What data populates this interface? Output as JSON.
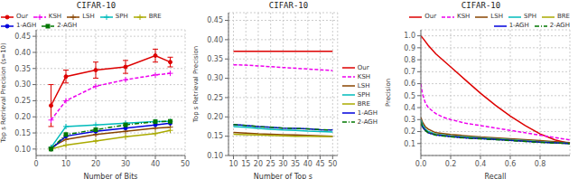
{
  "chart_data": [
    {
      "type": "line",
      "title": "CIFAR-10",
      "xlabel": "Number of Bits",
      "ylabel": "Top s Retrieval Precision (s=10)",
      "xlim": [
        0,
        50
      ],
      "ylim": [
        0.08,
        0.47
      ],
      "xticks": [
        0,
        10,
        20,
        30,
        40,
        50
      ],
      "yticks": [
        {
          "value": 0.1,
          "label": "0.10"
        },
        0.15,
        {
          "value": 0.2,
          "label": "0.20"
        },
        0.25,
        {
          "value": 0.3,
          "label": "0.30"
        },
        0.35,
        {
          "value": 0.4,
          "label": "0.40"
        },
        0.45
      ],
      "grid": true,
      "legend": "upper left",
      "x": [
        5,
        10,
        20,
        30,
        40,
        45
      ],
      "series": [
        {
          "name": "Our",
          "color": "#dd0000",
          "marker": "circle",
          "line_style": "solid",
          "values": [
            0.235,
            0.325,
            0.345,
            0.355,
            0.39,
            0.37
          ],
          "errors": [
            0.065,
            0.02,
            0.025,
            0.02,
            0.02,
            0.015
          ]
        },
        {
          "name": "KSH",
          "color": "#ee00ee",
          "marker": "plus",
          "line_style": "dashed",
          "values": [
            0.19,
            0.25,
            0.295,
            0.315,
            0.33,
            0.335
          ]
        },
        {
          "name": "LSH",
          "color": "#884400",
          "marker": "plus",
          "line_style": "solid",
          "values": [
            0.105,
            0.13,
            0.145,
            0.155,
            0.165,
            0.168
          ]
        },
        {
          "name": "SPH",
          "color": "#00bbbb",
          "marker": "plus",
          "line_style": "solid",
          "values": [
            0.105,
            0.17,
            0.175,
            0.18,
            0.185,
            0.186
          ]
        },
        {
          "name": "BRE",
          "color": "#aaaa00",
          "marker": "plus",
          "line_style": "solid",
          "values": [
            0.1,
            0.112,
            0.125,
            0.138,
            0.148,
            0.158
          ]
        },
        {
          "name": "1-AGH",
          "color": "#0000dd",
          "marker": "circle",
          "line_style": "solid",
          "values": [
            0.1,
            0.14,
            0.155,
            0.165,
            0.175,
            0.18
          ]
        },
        {
          "name": "2-AGH",
          "color": "#007700",
          "marker": "square",
          "line_style": "dashdot",
          "values": [
            0.1,
            0.145,
            0.16,
            0.175,
            0.185,
            0.186
          ]
        }
      ]
    },
    {
      "type": "line",
      "title": "CIFAR-10",
      "xlabel": "Number of Top s",
      "ylabel": "Top s Retrieval Precision",
      "xlim": [
        8,
        52
      ],
      "ylim": [
        0.1,
        0.47
      ],
      "xticks": [
        10,
        15,
        20,
        25,
        30,
        35,
        40,
        45,
        50
      ],
      "yticks": [
        {
          "value": 0.1,
          "label": "0.10"
        },
        0.15,
        {
          "value": 0.2,
          "label": "0.20"
        },
        0.25,
        {
          "value": 0.3,
          "label": "0.30"
        },
        0.35,
        {
          "value": 0.4,
          "label": "0.40"
        },
        0.45
      ],
      "grid": true,
      "legend": "center right",
      "x": [
        10,
        15,
        20,
        25,
        30,
        35,
        40,
        45,
        50
      ],
      "series": [
        {
          "name": "Our",
          "color": "#dd0000",
          "line_style": "solid",
          "values": [
            0.37,
            0.37,
            0.37,
            0.37,
            0.37,
            0.37,
            0.37,
            0.37,
            0.37
          ]
        },
        {
          "name": "KSH",
          "color": "#ee00ee",
          "line_style": "dashed",
          "values": [
            0.335,
            0.334,
            0.332,
            0.33,
            0.328,
            0.326,
            0.324,
            0.322,
            0.32
          ]
        },
        {
          "name": "LSH",
          "color": "#884400",
          "line_style": "solid",
          "values": [
            0.16,
            0.158,
            0.156,
            0.155,
            0.154,
            0.153,
            0.152,
            0.151,
            0.15
          ]
        },
        {
          "name": "SPH",
          "color": "#00bbbb",
          "line_style": "solid",
          "values": [
            0.175,
            0.173,
            0.17,
            0.168,
            0.166,
            0.165,
            0.163,
            0.162,
            0.161
          ]
        },
        {
          "name": "BRE",
          "color": "#aaaa00",
          "line_style": "solid",
          "values": [
            0.155,
            0.154,
            0.153,
            0.152,
            0.151,
            0.15,
            0.15,
            0.149,
            0.149
          ]
        },
        {
          "name": "1-AGH",
          "color": "#0000dd",
          "line_style": "solid",
          "values": [
            0.18,
            0.178,
            0.175,
            0.173,
            0.171,
            0.17,
            0.169,
            0.167,
            0.166
          ]
        },
        {
          "name": "2-AGH",
          "color": "#007700",
          "line_style": "dashdot",
          "values": [
            0.18,
            0.178,
            0.175,
            0.173,
            0.171,
            0.17,
            0.169,
            0.167,
            0.166
          ]
        }
      ]
    },
    {
      "type": "line",
      "title": "CIFAR-10",
      "xlabel": "Recall",
      "ylabel": "Precision",
      "xlim": [
        0,
        1.0
      ],
      "ylim": [
        0.0,
        1.05
      ],
      "xticks": [
        {
          "value": 0,
          "label": "0.0"
        },
        0.2,
        0.4,
        0.6,
        0.8
      ],
      "yticks": [
        0.1,
        0.2,
        0.3,
        0.4,
        0.5,
        0.6,
        0.7,
        0.8,
        0.9,
        {
          "value": 1,
          "label": "1.0"
        }
      ],
      "grid": true,
      "legend": "upper right",
      "series": [
        {
          "name": "Our",
          "color": "#dd0000",
          "line_style": "solid",
          "x": [
            0.0,
            0.02,
            0.05,
            0.1,
            0.2,
            0.3,
            0.4,
            0.5,
            0.6,
            0.7,
            0.8,
            0.9,
            1.0
          ],
          "values": [
            1.0,
            0.97,
            0.92,
            0.85,
            0.74,
            0.63,
            0.52,
            0.42,
            0.33,
            0.25,
            0.18,
            0.13,
            0.1
          ]
        },
        {
          "name": "KSH",
          "color": "#ee00ee",
          "line_style": "dashed",
          "x": [
            0.0,
            0.01,
            0.03,
            0.05,
            0.1,
            0.15,
            0.2,
            0.3,
            0.4,
            0.5,
            0.6,
            0.7,
            0.8,
            0.9,
            1.0
          ],
          "values": [
            0.6,
            0.52,
            0.44,
            0.4,
            0.35,
            0.32,
            0.3,
            0.27,
            0.25,
            0.23,
            0.21,
            0.19,
            0.17,
            0.15,
            0.13
          ]
        },
        {
          "name": "LSH",
          "color": "#884400",
          "line_style": "solid",
          "x": [
            0.0,
            0.01,
            0.03,
            0.05,
            0.1,
            0.2,
            0.3,
            0.4,
            0.5,
            0.6,
            0.7,
            0.8,
            0.9,
            1.0
          ],
          "values": [
            0.32,
            0.28,
            0.24,
            0.22,
            0.19,
            0.175,
            0.165,
            0.155,
            0.148,
            0.14,
            0.132,
            0.124,
            0.116,
            0.108
          ]
        },
        {
          "name": "SPH",
          "color": "#00bbbb",
          "line_style": "solid",
          "x": [
            0.0,
            0.01,
            0.03,
            0.05,
            0.1,
            0.2,
            0.3,
            0.4,
            0.5,
            0.6,
            0.7,
            0.8,
            0.9,
            1.0
          ],
          "values": [
            0.3,
            0.26,
            0.22,
            0.2,
            0.18,
            0.165,
            0.155,
            0.147,
            0.14,
            0.132,
            0.124,
            0.116,
            0.108,
            0.1
          ]
        },
        {
          "name": "BRE",
          "color": "#aaaa00",
          "line_style": "solid",
          "x": [
            0.0,
            0.01,
            0.03,
            0.05,
            0.1,
            0.2,
            0.3,
            0.4,
            0.5,
            0.6,
            0.7,
            0.8,
            0.9,
            1.0
          ],
          "values": [
            0.28,
            0.24,
            0.21,
            0.19,
            0.175,
            0.16,
            0.15,
            0.143,
            0.136,
            0.129,
            0.121,
            0.113,
            0.106,
            0.1
          ]
        },
        {
          "name": "1-AGH",
          "color": "#0000dd",
          "line_style": "solid",
          "x": [
            0.0,
            0.01,
            0.03,
            0.05,
            0.1,
            0.2,
            0.3,
            0.4,
            0.5,
            0.6,
            0.7,
            0.8,
            0.9,
            1.0
          ],
          "values": [
            0.28,
            0.24,
            0.21,
            0.19,
            0.172,
            0.158,
            0.148,
            0.141,
            0.134,
            0.127,
            0.119,
            0.111,
            0.105,
            0.1
          ]
        },
        {
          "name": "2-AGH",
          "color": "#007700",
          "line_style": "dashdot",
          "x": [
            0.0,
            0.01,
            0.03,
            0.05,
            0.1,
            0.2,
            0.3,
            0.4,
            0.5,
            0.6,
            0.7,
            0.8,
            0.9,
            1.0
          ],
          "values": [
            0.28,
            0.24,
            0.21,
            0.19,
            0.17,
            0.156,
            0.146,
            0.139,
            0.132,
            0.125,
            0.117,
            0.11,
            0.104,
            0.1
          ]
        }
      ]
    }
  ]
}
